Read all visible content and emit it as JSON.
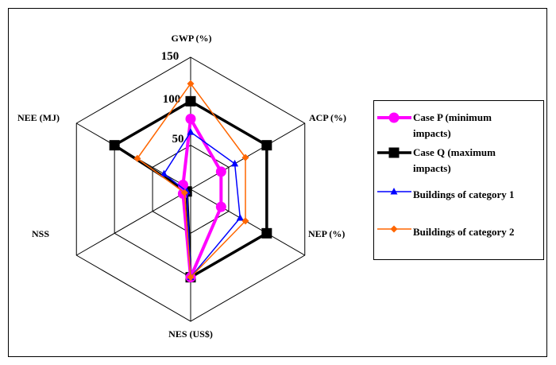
{
  "chart_data": {
    "type": "radar",
    "axes": [
      "GWP (%)",
      "ACP (%)",
      "NEP (%)",
      "NES (US$)",
      "NSS",
      "NEE (MJ)"
    ],
    "r_ticks": [
      "50",
      "100",
      "150"
    ],
    "rmax": 150,
    "tick_values": [
      50,
      100,
      150
    ],
    "grid": true,
    "legend_position": "right",
    "series": [
      {
        "name": "Case P (minimum impacts)",
        "color": "#ff00ff",
        "marker": "circle",
        "values": [
          80,
          40,
          40,
          100,
          10,
          10
        ]
      },
      {
        "name": "Case Q (maximum impacts)",
        "color": "#000000",
        "marker": "square",
        "values": [
          100,
          100,
          100,
          100,
          5,
          100
        ]
      },
      {
        "name": "Buildings of category 1",
        "color": "#0000ff",
        "marker": "triangle",
        "values": [
          65,
          58,
          65,
          100,
          5,
          35
        ]
      },
      {
        "name": "Buildings of category 2",
        "color": "#ff6600",
        "marker": "diamond",
        "values": [
          120,
          72,
          72,
          100,
          8,
          70
        ]
      }
    ]
  }
}
